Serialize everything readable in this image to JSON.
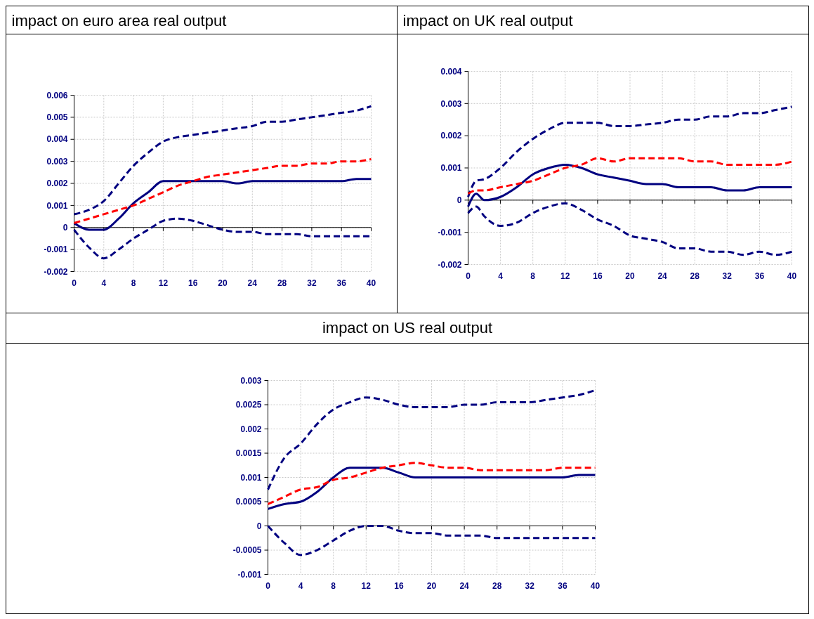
{
  "chart_data": [
    {
      "type": "line",
      "title": "impact on euro area real output",
      "x": [
        0,
        2,
        4,
        6,
        8,
        10,
        12,
        14,
        16,
        18,
        20,
        22,
        24,
        26,
        28,
        30,
        32,
        34,
        36,
        38,
        40
      ],
      "xlim": [
        0,
        40
      ],
      "xticks": [
        0,
        4,
        8,
        12,
        16,
        20,
        24,
        28,
        32,
        36,
        40
      ],
      "ylim": [
        -0.002,
        0.006
      ],
      "yticks": [
        -0.002,
        -0.001,
        0,
        0.001,
        0.002,
        0.003,
        0.004,
        0.005,
        0.006
      ],
      "grid": true,
      "series": [
        {
          "color": "#000080",
          "line_style": "dashed",
          "values": [
            0.0006,
            0.0008,
            0.0012,
            0.002,
            0.0028,
            0.0034,
            0.0039,
            0.0041,
            0.0042,
            0.0043,
            0.0044,
            0.0045,
            0.0046,
            0.0048,
            0.0048,
            0.0049,
            0.005,
            0.0051,
            0.0052,
            0.0053,
            0.0055
          ]
        },
        {
          "color": "#000080",
          "line_style": "solid",
          "values": [
            0.0002,
            -0.0001,
            -0.0001,
            0.0004,
            0.0011,
            0.0016,
            0.0021,
            0.0021,
            0.0021,
            0.0021,
            0.0021,
            0.002,
            0.0021,
            0.0021,
            0.0021,
            0.0021,
            0.0021,
            0.0021,
            0.0021,
            0.0022,
            0.0022
          ]
        },
        {
          "color": "#000080",
          "line_style": "dashed",
          "values": [
            -0.0001,
            -0.0009,
            -0.0014,
            -0.001,
            -0.0005,
            -0.0001,
            0.0003,
            0.0004,
            0.0003,
            0.0001,
            -0.0001,
            -0.0002,
            -0.0002,
            -0.0003,
            -0.0003,
            -0.0003,
            -0.0004,
            -0.0004,
            -0.0004,
            -0.0004,
            -0.0004
          ]
        },
        {
          "color": "#ff0000",
          "line_style": "dashed",
          "values": [
            0.0002,
            0.0004,
            0.0006,
            0.0008,
            0.001,
            0.0013,
            0.0016,
            0.0019,
            0.0021,
            0.0023,
            0.0024,
            0.0025,
            0.0026,
            0.0027,
            0.0028,
            0.0028,
            0.0029,
            0.0029,
            0.003,
            0.003,
            0.0031
          ]
        }
      ]
    },
    {
      "type": "line",
      "title": "impact on UK real output",
      "x": [
        0,
        1,
        2,
        4,
        6,
        8,
        10,
        12,
        14,
        16,
        18,
        20,
        22,
        24,
        26,
        28,
        30,
        32,
        34,
        36,
        38,
        40
      ],
      "xlim": [
        0,
        40
      ],
      "xticks": [
        0,
        4,
        8,
        12,
        16,
        20,
        24,
        28,
        32,
        36,
        40
      ],
      "ylim": [
        -0.002,
        0.004
      ],
      "yticks": [
        -0.002,
        -0.001,
        0,
        0.001,
        0.002,
        0.003,
        0.004
      ],
      "grid": true,
      "series": [
        {
          "color": "#000080",
          "line_style": "dashed",
          "values": [
            0.0001,
            0.0006,
            0.00065,
            0.001,
            0.0015,
            0.0019,
            0.0022,
            0.0024,
            0.0024,
            0.0024,
            0.0023,
            0.0023,
            0.00235,
            0.0024,
            0.0025,
            0.0025,
            0.0026,
            0.0026,
            0.0027,
            0.0027,
            0.0028,
            0.0029
          ]
        },
        {
          "color": "#000080",
          "line_style": "solid",
          "values": [
            -0.0002,
            0.0002,
            0,
            0.0001,
            0.0004,
            0.0008,
            0.001,
            0.0011,
            0.001,
            0.0008,
            0.0007,
            0.0006,
            0.0005,
            0.0005,
            0.0004,
            0.0004,
            0.0004,
            0.0003,
            0.0003,
            0.0004,
            0.0004,
            0.0004
          ]
        },
        {
          "color": "#000080",
          "line_style": "dashed",
          "values": [
            -0.0004,
            -0.0002,
            -0.0005,
            -0.0008,
            -0.0007,
            -0.0004,
            -0.0002,
            -0.0001,
            -0.0003,
            -0.0006,
            -0.0008,
            -0.0011,
            -0.0012,
            -0.0013,
            -0.0015,
            -0.0015,
            -0.0016,
            -0.0016,
            -0.0017,
            -0.0016,
            -0.0017,
            -0.0016
          ]
        },
        {
          "color": "#ff0000",
          "line_style": "dashed",
          "values": [
            0.0002,
            0.0003,
            0.0003,
            0.0004,
            0.0005,
            0.0006,
            0.0008,
            0.001,
            0.0011,
            0.0013,
            0.0012,
            0.0013,
            0.0013,
            0.0013,
            0.0013,
            0.0012,
            0.0012,
            0.0011,
            0.0011,
            0.0011,
            0.0011,
            0.0012
          ]
        }
      ]
    },
    {
      "type": "line",
      "title": "impact on US real output",
      "x": [
        0,
        2,
        4,
        6,
        8,
        10,
        12,
        14,
        16,
        18,
        20,
        22,
        24,
        26,
        28,
        30,
        32,
        34,
        36,
        38,
        40
      ],
      "xlim": [
        0,
        40
      ],
      "xticks": [
        0,
        4,
        8,
        12,
        16,
        20,
        24,
        28,
        32,
        36,
        40
      ],
      "ylim": [
        -0.001,
        0.003
      ],
      "yticks": [
        -0.001,
        -0.0005,
        0,
        0.0005,
        0.001,
        0.0015,
        0.002,
        0.0025,
        0.003
      ],
      "grid": true,
      "series": [
        {
          "color": "#000080",
          "line_style": "dashed",
          "values": [
            0.00075,
            0.0014,
            0.0017,
            0.0021,
            0.0024,
            0.00255,
            0.00265,
            0.0026,
            0.0025,
            0.00245,
            0.00245,
            0.00245,
            0.0025,
            0.0025,
            0.00255,
            0.00255,
            0.00255,
            0.0026,
            0.00265,
            0.0027,
            0.0028
          ]
        },
        {
          "color": "#000080",
          "line_style": "solid",
          "values": [
            0.00035,
            0.00045,
            0.0005,
            0.0007,
            0.001,
            0.0012,
            0.0012,
            0.0012,
            0.0011,
            0.001,
            0.001,
            0.001,
            0.001,
            0.001,
            0.001,
            0.001,
            0.001,
            0.001,
            0.001,
            0.00105,
            0.00105
          ]
        },
        {
          "color": "#000080",
          "line_style": "dashed",
          "values": [
            0,
            -0.00035,
            -0.0006,
            -0.0005,
            -0.0003,
            -0.0001,
            0,
            0,
            -0.0001,
            -0.00015,
            -0.00015,
            -0.0002,
            -0.0002,
            -0.0002,
            -0.00025,
            -0.00025,
            -0.00025,
            -0.00025,
            -0.00025,
            -0.00025,
            -0.00025
          ]
        },
        {
          "color": "#ff0000",
          "line_style": "dashed",
          "values": [
            0.00045,
            0.0006,
            0.00075,
            0.0008,
            0.00095,
            0.001,
            0.0011,
            0.0012,
            0.00125,
            0.0013,
            0.00125,
            0.0012,
            0.0012,
            0.00115,
            0.00115,
            0.00115,
            0.00115,
            0.00115,
            0.0012,
            0.0012,
            0.0012
          ]
        }
      ]
    }
  ]
}
